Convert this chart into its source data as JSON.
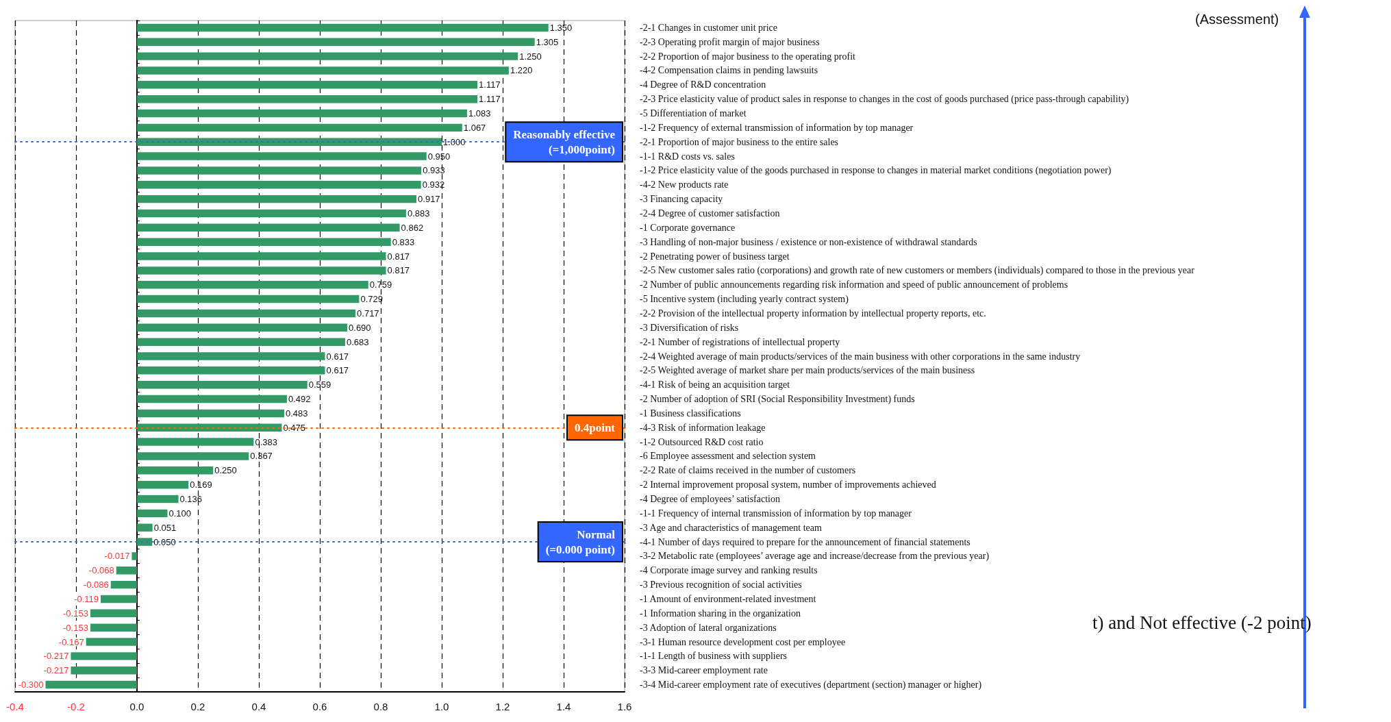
{
  "chart_data": {
    "type": "bar",
    "orientation": "horizontal",
    "color": "#339966",
    "categories": [
      "-2-1 Changes in customer unit price",
      "-2-3 Operating profit margin of major business",
      "-2-2 Proportion of major business to the operating profit",
      "-4-2 Compensation claims in pending lawsuits",
      "-4 Degree of R&D concentration",
      "-2-3 Price elasticity value of product sales in response to changes in the cost of goods purchased (price pass-through capability)",
      "-5 Differentiation of market",
      "-1-2 Frequency of external transmission of information by top manager",
      "-2-1 Proportion of major business to the entire sales",
      "-1-1 R&D costs vs. sales",
      "-1-2 Price elasticity value of the goods purchased in response to changes in material market conditions (negotiation power)",
      "-4-2 New products rate",
      "-3 Financing capacity",
      "-2-4 Degree of customer satisfaction",
      "-1 Corporate governance",
      "-3 Handling of non-major business / existence or non-existence of withdrawal standards",
      "-2 Penetrating power of business target",
      "-2-5 New customer sales ratio (corporations) and growth rate of new customers or members (individuals) compared to those in the previous year",
      "-2 Number of public announcements regarding risk information and speed of public announcement of problems",
      "-5 Incentive system (including yearly contract system)",
      "-2-2 Provision of the intellectual property information by intellectual property reports, etc.",
      "-3 Diversification of risks",
      "-2-1 Number of registrations of intellectual property",
      "-2-4 Weighted average of main products/services of the main business with other corporations in the same industry",
      "-2-5 Weighted average of market share per main products/services of the main business",
      "-4-1 Risk of being an acquisition target",
      "-2 Number of adoption of SRI (Social Responsibility Investment) funds",
      "-1 Business classifications",
      "-4-3 Risk of information leakage",
      "-1-2 Outsourced R&D cost ratio",
      "-6 Employee assessment and selection system",
      "-2-2 Rate of claims received in the number of customers",
      "-2 Internal improvement proposal system, number of improvements achieved",
      "-4 Degree of employees’ satisfaction",
      "-1-1 Frequency of internal transmission of information by top manager",
      "-3 Age and characteristics of management team",
      "-4-1 Number of days required to prepare for the announcement of financial statements",
      "-3-2 Metabolic rate (employees’ average age and increase/decrease from the previous year)",
      "-4 Corporate image survey and ranking results",
      "-3 Previous recognition of social activities",
      "-1 Amount of environment-related investment",
      "-1 Information sharing in the organization",
      "-3 Adoption of lateral organizations",
      "-3-1 Human resource development cost per employee",
      "-1-1 Length of business with suppliers",
      "-3-3 Mid-career employment rate",
      "-3-4 Mid-career employment rate of executives (department (section) manager or higher)"
    ],
    "values": [
      1.35,
      1.305,
      1.25,
      1.22,
      1.117,
      1.117,
      1.083,
      1.067,
      1.0,
      0.95,
      0.933,
      0.932,
      0.917,
      0.883,
      0.862,
      0.833,
      0.817,
      0.817,
      0.759,
      0.729,
      0.717,
      0.69,
      0.683,
      0.617,
      0.617,
      0.559,
      0.492,
      0.483,
      0.475,
      0.383,
      0.367,
      0.25,
      0.169,
      0.136,
      0.1,
      0.051,
      0.05,
      -0.017,
      -0.068,
      -0.086,
      -0.119,
      -0.153,
      -0.153,
      -0.167,
      -0.217,
      -0.217,
      -0.3
    ],
    "value_labels": [
      "1.350",
      "1.305",
      "1.250",
      "1.220",
      "1.117",
      "1.117",
      "1.083",
      "1.067",
      "1.000",
      "0.950",
      "0.933",
      "0.932",
      "0.917",
      "0.883",
      "0.862",
      "0.833",
      "0.817",
      "0.817",
      "0.759",
      "0.729",
      "0.717",
      "0.690",
      "0.683",
      "0.617",
      "0.617",
      "0.559",
      "0.492",
      "0.483",
      "0.475",
      "0.383",
      "0.367",
      "0.250",
      "0.169",
      "0.136",
      "0.100",
      "0.051",
      "0.050",
      "-0.017",
      "-0.068",
      "-0.086",
      "-0.119",
      "-0.153",
      "-0.153",
      "-0.167",
      "-0.217",
      "-0.217",
      "-0.300"
    ],
    "xlim": [
      -0.4,
      1.6
    ],
    "xticks": [
      {
        "value": -0.4,
        "label": "-0.4"
      },
      {
        "value": -0.2,
        "label": "-0.2"
      },
      {
        "value": 0,
        "label": "0.0"
      },
      {
        "value": 0.2,
        "label": "0.2"
      },
      {
        "value": 0.4,
        "label": "0.4"
      },
      {
        "value": 0.6,
        "label": "0.6"
      },
      {
        "value": 0.8,
        "label": "0.8"
      },
      {
        "value": 1,
        "label": "1.0"
      },
      {
        "value": 1.2,
        "label": "1.2"
      },
      {
        "value": 1.4,
        "label": "1.4"
      },
      {
        "value": 1.6,
        "label": "1.6"
      }
    ],
    "grid": "x",
    "ref_lines": [
      {
        "axis": "y",
        "value": "-2-1 Proportion of major business to the entire sales",
        "label": "Reasonably effective\n(=1,000point)",
        "color": "#3366ff",
        "line_style": "dotted"
      },
      {
        "axis": "y",
        "value": "-4-3 Risk of information leakage",
        "label": "0.4point",
        "color": "#ff6600",
        "line_style": "dotted"
      },
      {
        "axis": "y",
        "value": "-4-1 Number of days required to prepare for the announcement of financial statements",
        "label": "Normal\n(=0.000 point)",
        "color": "#3366ff",
        "line_style": "dotted"
      }
    ],
    "annotations": [
      "(Assessment)",
      "t) and Not effective (-2 point)"
    ]
  }
}
